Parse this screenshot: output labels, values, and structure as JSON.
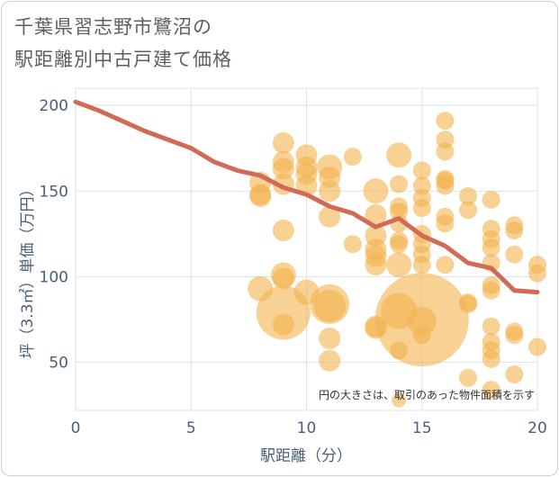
{
  "title_line1": "千葉県習志野市鷺沼の",
  "title_line2": "駅距離別中古戸建て価格",
  "chart_data": {
    "type": "scatter",
    "title": "千葉県習志野市鷺沼の駅距離別中古戸建て価格",
    "xlabel": "駅距離（分）",
    "ylabel": "坪（3.3㎡）単価（万円）",
    "xlim": [
      0,
      20
    ],
    "ylim": [
      22,
      210
    ],
    "xticks": [
      "0",
      "5",
      "10",
      "15",
      "20"
    ],
    "yticks": [
      "50",
      "100",
      "150",
      "200"
    ],
    "grid": true,
    "note": "円の大きさは、取引のあった物件面積を示す",
    "colors": {
      "bubble": "#f4b24e",
      "trend": "#d16a56",
      "grid": "#dde3ea"
    },
    "trend": {
      "x": [
        0,
        1,
        2,
        3,
        4,
        5,
        6,
        7,
        8,
        9,
        10,
        11,
        12,
        13,
        14,
        15,
        16,
        17,
        18,
        19,
        20
      ],
      "y": [
        202,
        197,
        191,
        185,
        180,
        175,
        167,
        162,
        159,
        152,
        148,
        141,
        137,
        129,
        134,
        124,
        118,
        108,
        105,
        92,
        91
      ]
    },
    "points": [
      {
        "x": 8,
        "y": 155,
        "s": 12
      },
      {
        "x": 8,
        "y": 148,
        "s": 12
      },
      {
        "x": 8,
        "y": 147,
        "s": 12
      },
      {
        "x": 8,
        "y": 93,
        "s": 14
      },
      {
        "x": 9,
        "y": 178,
        "s": 12
      },
      {
        "x": 9,
        "y": 167,
        "s": 12
      },
      {
        "x": 9,
        "y": 163,
        "s": 12
      },
      {
        "x": 9,
        "y": 154,
        "s": 12
      },
      {
        "x": 9,
        "y": 127,
        "s": 12
      },
      {
        "x": 9,
        "y": 101,
        "s": 14
      },
      {
        "x": 9,
        "y": 99,
        "s": 12
      },
      {
        "x": 9,
        "y": 79,
        "s": 30
      },
      {
        "x": 9,
        "y": 72,
        "s": 12
      },
      {
        "x": 10,
        "y": 171,
        "s": 12
      },
      {
        "x": 10,
        "y": 164,
        "s": 12
      },
      {
        "x": 10,
        "y": 160,
        "s": 12
      },
      {
        "x": 10,
        "y": 153,
        "s": 12
      },
      {
        "x": 10,
        "y": 91,
        "s": 14
      },
      {
        "x": 11,
        "y": 164,
        "s": 14
      },
      {
        "x": 11,
        "y": 158,
        "s": 12
      },
      {
        "x": 11,
        "y": 150,
        "s": 12
      },
      {
        "x": 11,
        "y": 135,
        "s": 12
      },
      {
        "x": 11,
        "y": 84,
        "s": 22
      },
      {
        "x": 11,
        "y": 83,
        "s": 18
      },
      {
        "x": 11,
        "y": 64,
        "s": 12
      },
      {
        "x": 11,
        "y": 51,
        "s": 12
      },
      {
        "x": 12,
        "y": 170,
        "s": 10
      },
      {
        "x": 12,
        "y": 119,
        "s": 10
      },
      {
        "x": 13,
        "y": 150,
        "s": 14
      },
      {
        "x": 13,
        "y": 136,
        "s": 12
      },
      {
        "x": 13,
        "y": 124,
        "s": 12
      },
      {
        "x": 13,
        "y": 116,
        "s": 12
      },
      {
        "x": 13,
        "y": 112,
        "s": 12
      },
      {
        "x": 13,
        "y": 107,
        "s": 12
      },
      {
        "x": 13,
        "y": 71,
        "s": 12
      },
      {
        "x": 13,
        "y": 70,
        "s": 12
      },
      {
        "x": 14,
        "y": 171,
        "s": 14
      },
      {
        "x": 14,
        "y": 154,
        "s": 10
      },
      {
        "x": 14,
        "y": 141,
        "s": 10
      },
      {
        "x": 14,
        "y": 138,
        "s": 10
      },
      {
        "x": 14,
        "y": 131,
        "s": 10
      },
      {
        "x": 14,
        "y": 121,
        "s": 10
      },
      {
        "x": 14,
        "y": 119,
        "s": 10
      },
      {
        "x": 14,
        "y": 107,
        "s": 14
      },
      {
        "x": 14,
        "y": 80,
        "s": 20
      },
      {
        "x": 14,
        "y": 57,
        "s": 10
      },
      {
        "x": 14,
        "y": 28,
        "s": 8
      },
      {
        "x": 15,
        "y": 162,
        "s": 10
      },
      {
        "x": 15,
        "y": 153,
        "s": 10
      },
      {
        "x": 15,
        "y": 146,
        "s": 10
      },
      {
        "x": 15,
        "y": 140,
        "s": 10
      },
      {
        "x": 15,
        "y": 125,
        "s": 10
      },
      {
        "x": 15,
        "y": 119,
        "s": 10
      },
      {
        "x": 15,
        "y": 113,
        "s": 10
      },
      {
        "x": 15,
        "y": 107,
        "s": 10
      },
      {
        "x": 15,
        "y": 75,
        "s": 52
      },
      {
        "x": 15,
        "y": 74,
        "s": 16
      },
      {
        "x": 15,
        "y": 66,
        "s": 10
      },
      {
        "x": 16,
        "y": 191,
        "s": 10
      },
      {
        "x": 16,
        "y": 180,
        "s": 10
      },
      {
        "x": 16,
        "y": 173,
        "s": 10
      },
      {
        "x": 16,
        "y": 157,
        "s": 10
      },
      {
        "x": 16,
        "y": 156,
        "s": 10
      },
      {
        "x": 16,
        "y": 153,
        "s": 10
      },
      {
        "x": 16,
        "y": 135,
        "s": 10
      },
      {
        "x": 16,
        "y": 131,
        "s": 10
      },
      {
        "x": 16,
        "y": 107,
        "s": 10
      },
      {
        "x": 17,
        "y": 147,
        "s": 10
      },
      {
        "x": 17,
        "y": 139,
        "s": 10
      },
      {
        "x": 17,
        "y": 85,
        "s": 10
      },
      {
        "x": 17,
        "y": 84,
        "s": 10
      },
      {
        "x": 17,
        "y": 41,
        "s": 10
      },
      {
        "x": 18,
        "y": 145,
        "s": 10
      },
      {
        "x": 18,
        "y": 128,
        "s": 10
      },
      {
        "x": 18,
        "y": 122,
        "s": 10
      },
      {
        "x": 18,
        "y": 117,
        "s": 10
      },
      {
        "x": 18,
        "y": 108,
        "s": 10
      },
      {
        "x": 18,
        "y": 95,
        "s": 10
      },
      {
        "x": 18,
        "y": 92,
        "s": 10
      },
      {
        "x": 18,
        "y": 71,
        "s": 10
      },
      {
        "x": 18,
        "y": 62,
        "s": 10
      },
      {
        "x": 18,
        "y": 57,
        "s": 10
      },
      {
        "x": 18,
        "y": 52,
        "s": 10
      },
      {
        "x": 18,
        "y": 34,
        "s": 10
      },
      {
        "x": 19,
        "y": 130,
        "s": 10
      },
      {
        "x": 19,
        "y": 127,
        "s": 10
      },
      {
        "x": 19,
        "y": 113,
        "s": 10
      },
      {
        "x": 19,
        "y": 68,
        "s": 10
      },
      {
        "x": 19,
        "y": 66,
        "s": 10
      },
      {
        "x": 19,
        "y": 43,
        "s": 10
      },
      {
        "x": 20,
        "y": 107,
        "s": 10
      },
      {
        "x": 20,
        "y": 102,
        "s": 10
      },
      {
        "x": 20,
        "y": 59,
        "s": 10
      }
    ]
  }
}
